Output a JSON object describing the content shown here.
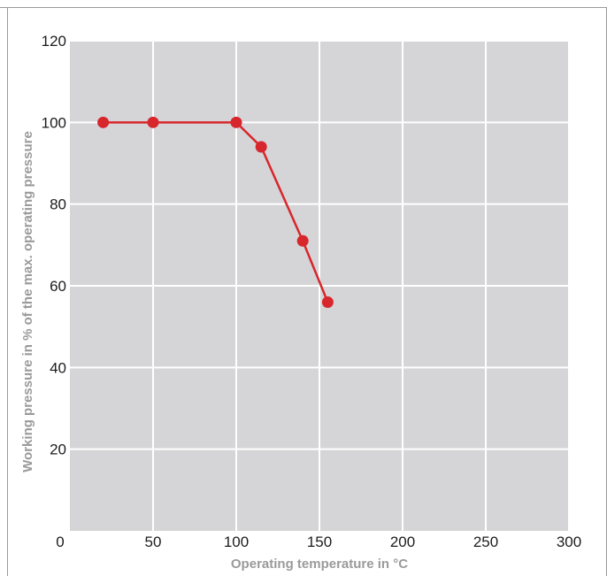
{
  "chart_data": {
    "type": "line",
    "xlabel": "Operating temperature in °C",
    "ylabel": "Working pressure in % of the max. operating pressure",
    "xlim": [
      0,
      300
    ],
    "ylim": [
      0,
      120
    ],
    "x_ticks": [
      0,
      50,
      100,
      150,
      200,
      250,
      300
    ],
    "y_ticks": [
      0,
      20,
      40,
      60,
      80,
      100,
      120
    ],
    "grid": true,
    "colors": {
      "plot_background": "#d5d5d7",
      "grid": "#ffffff",
      "series": "#d7262c",
      "axis_title": "#9a9a9a",
      "tick": "#1c1c1c"
    },
    "series": [
      {
        "x": [
          20,
          50,
          100,
          115,
          140,
          155
        ],
        "y": [
          100,
          100,
          100,
          94,
          71,
          56
        ]
      }
    ]
  }
}
